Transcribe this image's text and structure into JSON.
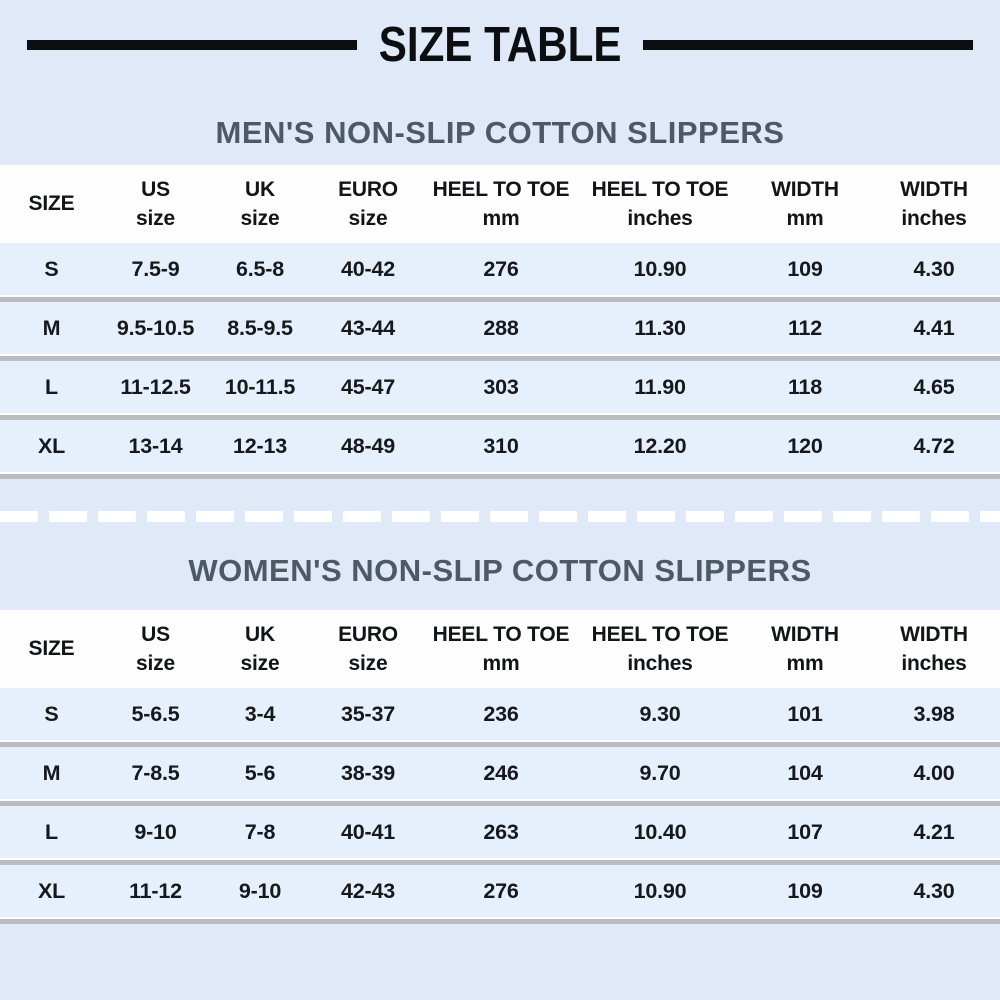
{
  "page": {
    "title": "SIZE TABLE",
    "background_color": "#dfe9f7",
    "title_bar_color": "#0c0e12",
    "heading_color": "#4d5965",
    "header_band_color": "#fdfdfe",
    "row_color": "#e6f0fc",
    "row_separator_color": "#b9bdc0",
    "dash_divider_color": "#ffffff"
  },
  "columns": [
    {
      "line1": "SIZE",
      "line2": ""
    },
    {
      "line1": "US",
      "line2": "size"
    },
    {
      "line1": "UK",
      "line2": "size"
    },
    {
      "line1": "EURO",
      "line2": "size"
    },
    {
      "line1": "HEEL TO TOE",
      "line2": "mm"
    },
    {
      "line1": "HEEL TO TOE",
      "line2": "inches"
    },
    {
      "line1": "WIDTH",
      "line2": "mm"
    },
    {
      "line1": "WIDTH",
      "line2": "inches"
    }
  ],
  "men_table": {
    "heading": "MEN'S NON-SLIP COTTON SLIPPERS",
    "rows": [
      [
        "S",
        "7.5-9",
        "6.5-8",
        "40-42",
        "276",
        "10.90",
        "109",
        "4.30"
      ],
      [
        "M",
        "9.5-10.5",
        "8.5-9.5",
        "43-44",
        "288",
        "11.30",
        "112",
        "4.41"
      ],
      [
        "L",
        "11-12.5",
        "10-11.5",
        "45-47",
        "303",
        "11.90",
        "118",
        "4.65"
      ],
      [
        "XL",
        "13-14",
        "12-13",
        "48-49",
        "310",
        "12.20",
        "120",
        "4.72"
      ]
    ]
  },
  "women_table": {
    "heading": "WOMEN'S NON-SLIP COTTON SLIPPERS",
    "rows": [
      [
        "S",
        "5-6.5",
        "3-4",
        "35-37",
        "236",
        "9.30",
        "101",
        "3.98"
      ],
      [
        "M",
        "7-8.5",
        "5-6",
        "38-39",
        "246",
        "9.70",
        "104",
        "4.00"
      ],
      [
        "L",
        "9-10",
        "7-8",
        "40-41",
        "263",
        "10.40",
        "107",
        "4.21"
      ],
      [
        "XL",
        "11-12",
        "9-10",
        "42-43",
        "276",
        "10.90",
        "109",
        "4.30"
      ]
    ]
  },
  "chart_data": [
    {
      "type": "table",
      "title": "MEN'S NON-SLIP COTTON SLIPPERS",
      "columns": [
        "SIZE",
        "US size",
        "UK size",
        "EURO size",
        "HEEL TO TOE mm",
        "HEEL TO TOE inches",
        "WIDTH mm",
        "WIDTH inches"
      ],
      "rows": [
        [
          "S",
          "7.5-9",
          "6.5-8",
          "40-42",
          276,
          10.9,
          109,
          4.3
        ],
        [
          "M",
          "9.5-10.5",
          "8.5-9.5",
          "43-44",
          288,
          11.3,
          112,
          4.41
        ],
        [
          "L",
          "11-12.5",
          "10-11.5",
          "45-47",
          303,
          11.9,
          118,
          4.65
        ],
        [
          "XL",
          "13-14",
          "12-13",
          "48-49",
          310,
          12.2,
          120,
          4.72
        ]
      ]
    },
    {
      "type": "table",
      "title": "WOMEN'S NON-SLIP COTTON SLIPPERS",
      "columns": [
        "SIZE",
        "US size",
        "UK size",
        "EURO size",
        "HEEL TO TOE mm",
        "HEEL TO TOE inches",
        "WIDTH mm",
        "WIDTH inches"
      ],
      "rows": [
        [
          "S",
          "5-6.5",
          "3-4",
          "35-37",
          236,
          9.3,
          101,
          3.98
        ],
        [
          "M",
          "7-8.5",
          "5-6",
          "38-39",
          246,
          9.7,
          104,
          4.0
        ],
        [
          "L",
          "9-10",
          "7-8",
          "40-41",
          263,
          10.4,
          107,
          4.21
        ],
        [
          "XL",
          "11-12",
          "9-10",
          "42-43",
          276,
          10.9,
          109,
          4.3
        ]
      ]
    }
  ]
}
